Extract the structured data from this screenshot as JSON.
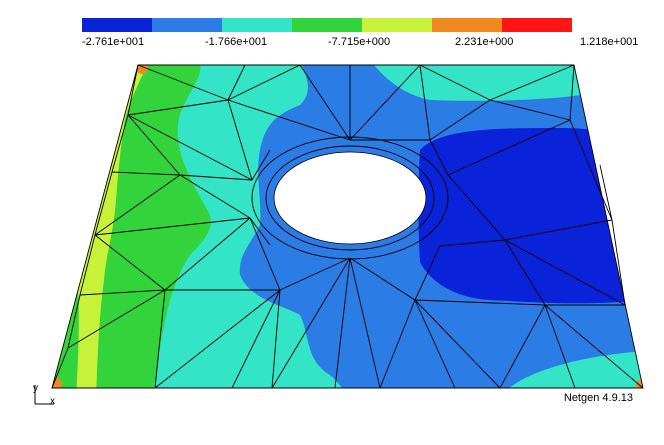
{
  "app": {
    "version_label": "Netgen 4.9.13"
  },
  "colorbar": {
    "colors": [
      "#0a23d8",
      "#2c7ce6",
      "#34e4c6",
      "#33d43b",
      "#c8f23a",
      "#f08a1e",
      "#ff1515"
    ],
    "tick_labels": [
      "-2.761e+001",
      "-1.766e+001",
      "-7.715e+000",
      "2.231e+000",
      "1.218e+001"
    ]
  },
  "axes": {
    "x_label": "x",
    "y_label": "y"
  },
  "contour_colors": {
    "plate_base": "#2c7ce6",
    "deep_blue": "#0a23d8",
    "cyan": "#34e4c6",
    "green": "#33d43b",
    "yellow_green": "#c8f23a",
    "orange": "#f08a1e",
    "hole": "#ffffff",
    "mesh_lines": "#000000"
  }
}
